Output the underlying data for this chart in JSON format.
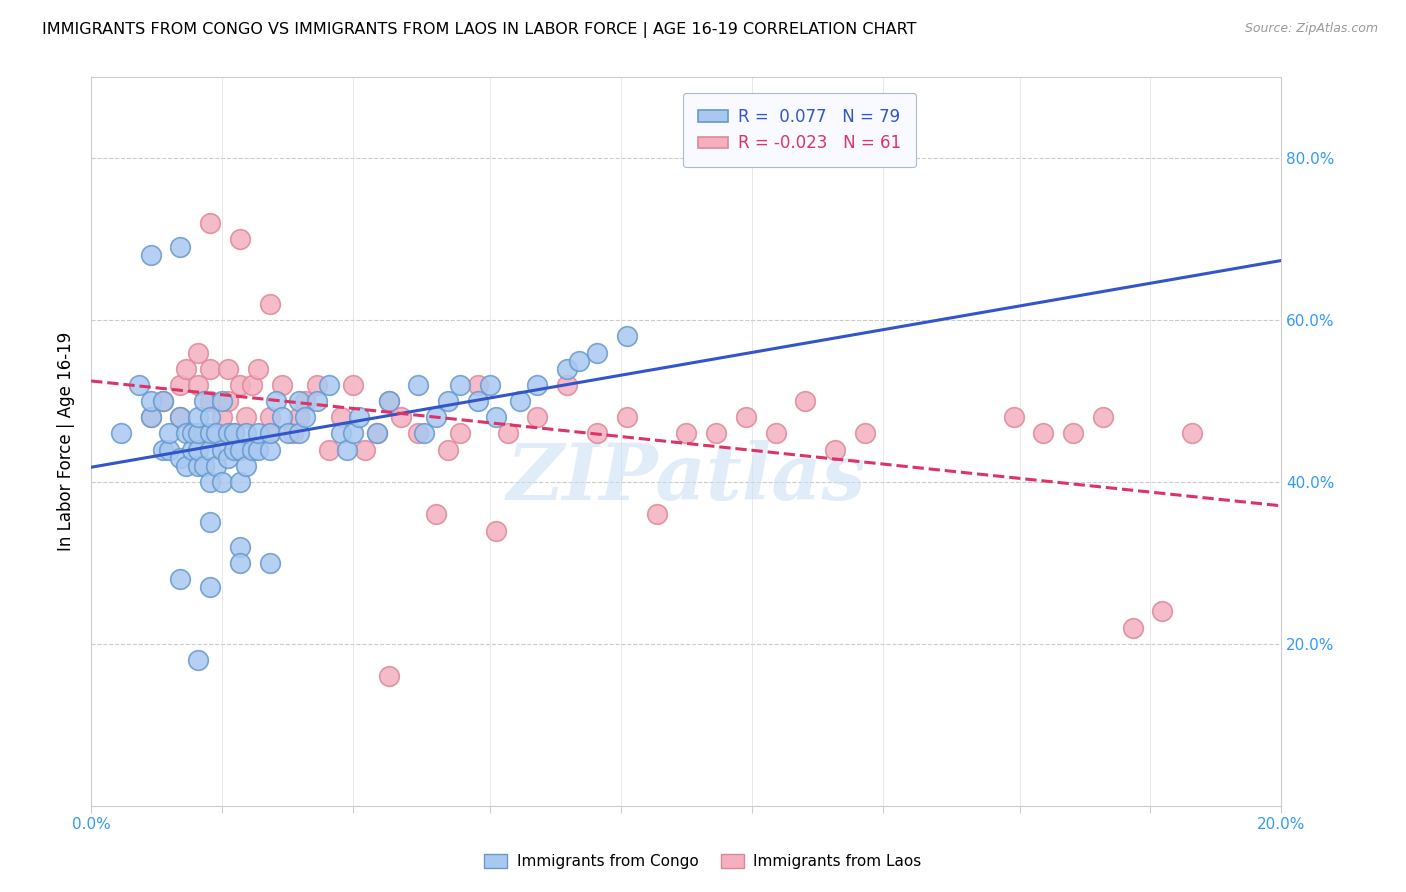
{
  "title": "IMMIGRANTS FROM CONGO VS IMMIGRANTS FROM LAOS IN LABOR FORCE | AGE 16-19 CORRELATION CHART",
  "source": "Source: ZipAtlas.com",
  "ylabel": "In Labor Force | Age 16-19",
  "xlim": [
    0.0,
    0.2
  ],
  "ylim": [
    0.0,
    0.9
  ],
  "ytick_vals": [
    0.0,
    0.2,
    0.3,
    0.4,
    0.5,
    0.6,
    0.7,
    0.8
  ],
  "xtick_labels": [
    "0.0%",
    "",
    "",
    "",
    "",
    "",
    "",
    "",
    "",
    "20.0%"
  ],
  "xtick_vals": [
    0.0,
    0.022,
    0.044,
    0.067,
    0.089,
    0.111,
    0.133,
    0.156,
    0.178,
    0.2
  ],
  "right_ytick_labels": [
    "20.0%",
    "40.0%",
    "60.0%",
    "80.0%"
  ],
  "right_ytick_vals": [
    0.2,
    0.4,
    0.6,
    0.8
  ],
  "congo_R": "0.077",
  "congo_N": "79",
  "laos_R": "-0.023",
  "laos_N": "61",
  "congo_color": "#a8c8f0",
  "laos_color": "#f5b0c0",
  "congo_edge": "#6699cc",
  "laos_edge": "#dd8899",
  "congo_line_color": "#3355cc",
  "laos_line_color": "#dd3366",
  "watermark": "ZIPatlas",
  "legend_box_color": "#f8faff",
  "congo_scatter_x": [
    0.005,
    0.008,
    0.01,
    0.01,
    0.012,
    0.012,
    0.013,
    0.013,
    0.015,
    0.015,
    0.016,
    0.016,
    0.017,
    0.017,
    0.018,
    0.018,
    0.018,
    0.018,
    0.019,
    0.019,
    0.02,
    0.02,
    0.02,
    0.02,
    0.021,
    0.021,
    0.022,
    0.022,
    0.023,
    0.023,
    0.024,
    0.024,
    0.025,
    0.025,
    0.026,
    0.026,
    0.027,
    0.028,
    0.028,
    0.03,
    0.03,
    0.031,
    0.032,
    0.033,
    0.035,
    0.035,
    0.036,
    0.038,
    0.04,
    0.042,
    0.043,
    0.044,
    0.045,
    0.048,
    0.05,
    0.055,
    0.056,
    0.058,
    0.06,
    0.062,
    0.065,
    0.067,
    0.068,
    0.072,
    0.075,
    0.08,
    0.082,
    0.085,
    0.09,
    0.01,
    0.015,
    0.02,
    0.025,
    0.03,
    0.025,
    0.015,
    0.02,
    0.018,
    0.022
  ],
  "congo_scatter_y": [
    0.46,
    0.52,
    0.48,
    0.5,
    0.44,
    0.5,
    0.44,
    0.46,
    0.43,
    0.48,
    0.42,
    0.46,
    0.44,
    0.46,
    0.42,
    0.44,
    0.46,
    0.48,
    0.42,
    0.5,
    0.4,
    0.44,
    0.46,
    0.48,
    0.42,
    0.46,
    0.4,
    0.44,
    0.43,
    0.46,
    0.44,
    0.46,
    0.4,
    0.44,
    0.42,
    0.46,
    0.44,
    0.44,
    0.46,
    0.44,
    0.46,
    0.5,
    0.48,
    0.46,
    0.46,
    0.5,
    0.48,
    0.5,
    0.52,
    0.46,
    0.44,
    0.46,
    0.48,
    0.46,
    0.5,
    0.52,
    0.46,
    0.48,
    0.5,
    0.52,
    0.5,
    0.52,
    0.48,
    0.5,
    0.52,
    0.54,
    0.55,
    0.56,
    0.58,
    0.68,
    0.69,
    0.35,
    0.32,
    0.3,
    0.3,
    0.28,
    0.27,
    0.18,
    0.5
  ],
  "laos_scatter_x": [
    0.01,
    0.012,
    0.015,
    0.015,
    0.016,
    0.018,
    0.018,
    0.02,
    0.02,
    0.022,
    0.023,
    0.023,
    0.024,
    0.025,
    0.026,
    0.027,
    0.028,
    0.03,
    0.03,
    0.032,
    0.034,
    0.035,
    0.036,
    0.038,
    0.04,
    0.042,
    0.044,
    0.046,
    0.048,
    0.05,
    0.052,
    0.055,
    0.058,
    0.06,
    0.062,
    0.065,
    0.068,
    0.07,
    0.075,
    0.08,
    0.085,
    0.09,
    0.095,
    0.1,
    0.105,
    0.11,
    0.115,
    0.12,
    0.125,
    0.13,
    0.155,
    0.16,
    0.165,
    0.17,
    0.175,
    0.18,
    0.185,
    0.02,
    0.025,
    0.03,
    0.05
  ],
  "laos_scatter_y": [
    0.48,
    0.5,
    0.52,
    0.48,
    0.54,
    0.56,
    0.52,
    0.5,
    0.54,
    0.48,
    0.5,
    0.54,
    0.46,
    0.52,
    0.48,
    0.52,
    0.54,
    0.46,
    0.48,
    0.52,
    0.46,
    0.48,
    0.5,
    0.52,
    0.44,
    0.48,
    0.52,
    0.44,
    0.46,
    0.5,
    0.48,
    0.46,
    0.36,
    0.44,
    0.46,
    0.52,
    0.34,
    0.46,
    0.48,
    0.52,
    0.46,
    0.48,
    0.36,
    0.46,
    0.46,
    0.48,
    0.46,
    0.5,
    0.44,
    0.46,
    0.48,
    0.46,
    0.46,
    0.48,
    0.22,
    0.24,
    0.46,
    0.72,
    0.7,
    0.62,
    0.16
  ]
}
